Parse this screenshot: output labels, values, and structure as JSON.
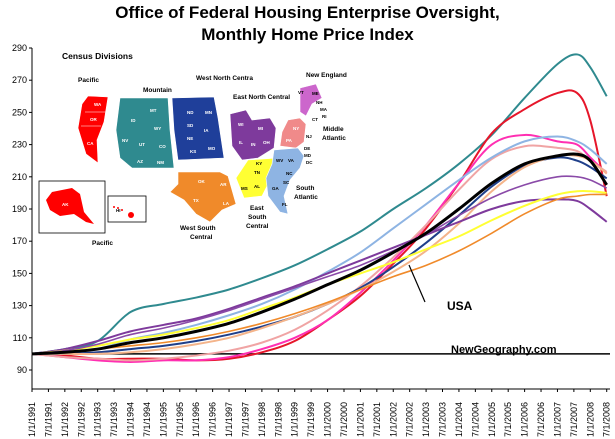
{
  "chart_data": {
    "type": "line",
    "title": "Office of Federal Housing Enterprise Oversight,",
    "subtitle": "Monthly Home Price Index",
    "ylim": [
      90,
      290
    ],
    "yticks": [
      90,
      110,
      130,
      150,
      170,
      190,
      210,
      230,
      250,
      270,
      290
    ],
    "x_tick_labels": [
      "1/1/1991",
      "7/1/1991",
      "1/1/1992",
      "7/1/1992",
      "1/1/1993",
      "7/1/1993",
      "1/1/1994",
      "7/1/1994",
      "1/1/1995",
      "7/1/1995",
      "1/1/1996",
      "7/1/1996",
      "1/1/1997",
      "7/1/1997",
      "1/1/1998",
      "7/1/1998",
      "1/1/1999",
      "7/1/1999",
      "1/1/2000",
      "7/1/2000",
      "1/1/2001",
      "7/1/2001",
      "1/1/2002",
      "7/1/2002",
      "1/1/2003",
      "7/1/2003",
      "1/1/2004",
      "7/1/2004",
      "1/1/2005",
      "7/1/2005",
      "1/1/2006",
      "7/1/2006",
      "1/1/2007",
      "7/1/2007",
      "1/1/2008",
      "7/1/2008"
    ],
    "baseline": 100,
    "grid": false,
    "legend": "none",
    "annotations": [
      {
        "text": "USA",
        "x": 2003.1,
        "y": 165
      },
      {
        "text": "NewGeography.com"
      }
    ],
    "x_years": [
      1991,
      1992,
      1993,
      1994,
      1995,
      1996,
      1997,
      1998,
      1999,
      2000,
      2001,
      2002,
      2003,
      2004,
      2005,
      2006,
      2007,
      2007.6,
      2008,
      2008.5
    ],
    "series": [
      {
        "color": "#2f8a8f",
        "width": 2,
        "values": [
          100,
          103,
          108,
          126,
          131,
          135,
          140,
          147,
          155,
          165,
          176,
          190,
          203,
          218,
          236,
          259,
          280,
          286,
          278,
          260
        ]
      },
      {
        "color": "#e6162a",
        "width": 2,
        "values": [
          100,
          99,
          97,
          97,
          97,
          96,
          97,
          101,
          108,
          121,
          136,
          156,
          178,
          206,
          237,
          252,
          262,
          262,
          245,
          198
        ]
      },
      {
        "color": "#ff2fb2",
        "width": 2,
        "values": [
          100,
          98,
          96,
          95,
          96,
          96,
          98,
          103,
          110,
          121,
          138,
          158,
          180,
          206,
          230,
          236,
          232,
          230,
          222,
          212
        ]
      },
      {
        "color": "#f0a4a4",
        "width": 2,
        "values": [
          100,
          98,
          97,
          96,
          97,
          99,
          102,
          107,
          115,
          127,
          142,
          160,
          180,
          202,
          221,
          229,
          228,
          226,
          220,
          213
        ]
      },
      {
        "color": "#8eb4e3",
        "width": 2,
        "values": [
          100,
          101,
          103,
          109,
          113,
          118,
          124,
          131,
          140,
          151,
          163,
          178,
          193,
          208,
          222,
          232,
          235,
          232,
          227,
          218
        ]
      },
      {
        "color": "#1f3f8a",
        "width": 2,
        "values": [
          100,
          100,
          101,
          103,
          105,
          108,
          112,
          117,
          123,
          131,
          141,
          154,
          169,
          186,
          204,
          217,
          222,
          220,
          216,
          209
        ]
      },
      {
        "color": "#f4b48a",
        "width": 2,
        "values": [
          100,
          100,
          100,
          101,
          103,
          106,
          110,
          116,
          123,
          131,
          140,
          151,
          164,
          181,
          201,
          216,
          223,
          223,
          220,
          212
        ]
      },
      {
        "color": "#7e3a9c",
        "width": 2,
        "values": [
          100,
          103,
          108,
          114,
          118,
          122,
          128,
          135,
          142,
          150,
          158,
          166,
          174,
          182,
          190,
          195,
          196,
          195,
          190,
          182
        ]
      },
      {
        "color": "#ffff33",
        "width": 2,
        "values": [
          100,
          102,
          105,
          109,
          112,
          116,
          121,
          128,
          135,
          143,
          150,
          157,
          165,
          173,
          183,
          192,
          199,
          201,
          201,
          200
        ]
      },
      {
        "color": "#f08a2a",
        "width": 1.6,
        "values": [
          100,
          101,
          103,
          105,
          107,
          110,
          114,
          119,
          125,
          132,
          140,
          148,
          155,
          164,
          175,
          187,
          196,
          198,
          199,
          199
        ]
      },
      {
        "color": "#8a4aa8",
        "width": 1.6,
        "values": [
          100,
          102,
          106,
          112,
          116,
          121,
          127,
          134,
          141,
          148,
          155,
          164,
          174,
          186,
          197,
          205,
          210,
          210,
          208,
          203
        ]
      },
      {
        "color": "#000000",
        "width": 3,
        "values": [
          100,
          101,
          103,
          107,
          110,
          114,
          119,
          126,
          134,
          143,
          152,
          163,
          175,
          190,
          206,
          218,
          223,
          224,
          220,
          205
        ]
      }
    ]
  },
  "inset_map": {
    "heading": "Census Divisions",
    "regions": [
      {
        "name": "Pacific",
        "color": "#ff0000",
        "states": [
          "WA",
          "OR",
          "CA"
        ]
      },
      {
        "name": "Mountain",
        "color": "#2f8a8f",
        "states": [
          "MT",
          "ID",
          "WY",
          "NV",
          "UT",
          "CO",
          "AZ",
          "NM"
        ]
      },
      {
        "name": "West North Centra",
        "color": "#1f3f9a",
        "states": [
          "ND",
          "MN",
          "SD",
          "NE",
          "IA",
          "KS",
          "MO"
        ]
      },
      {
        "name": "East North Central",
        "color": "#7e3a9c",
        "states": [
          "WI",
          "MI",
          "IL",
          "IN",
          "OH"
        ]
      },
      {
        "name": "New England",
        "color": "#cc66cc",
        "states": [
          "ME",
          "VT",
          "NH",
          "MA",
          "RI",
          "CT"
        ]
      },
      {
        "name": "Middle Atlantic",
        "color": "#f08a8a",
        "states": [
          "NY",
          "PA",
          "NJ"
        ]
      },
      {
        "name": "West South Central",
        "color": "#f08a2a",
        "states": [
          "OK",
          "AR",
          "TX",
          "LA"
        ]
      },
      {
        "name": "East South Central",
        "color": "#ffff33",
        "states": [
          "KY",
          "TN",
          "MS",
          "AL"
        ]
      },
      {
        "name": "South Atlantic",
        "color": "#8eb4e3",
        "states": [
          "DE",
          "MD",
          "WV",
          "VA",
          "NC",
          "SC",
          "GA",
          "FL",
          "DC"
        ]
      }
    ],
    "inset_states": [
      "AK",
      "HI"
    ]
  }
}
